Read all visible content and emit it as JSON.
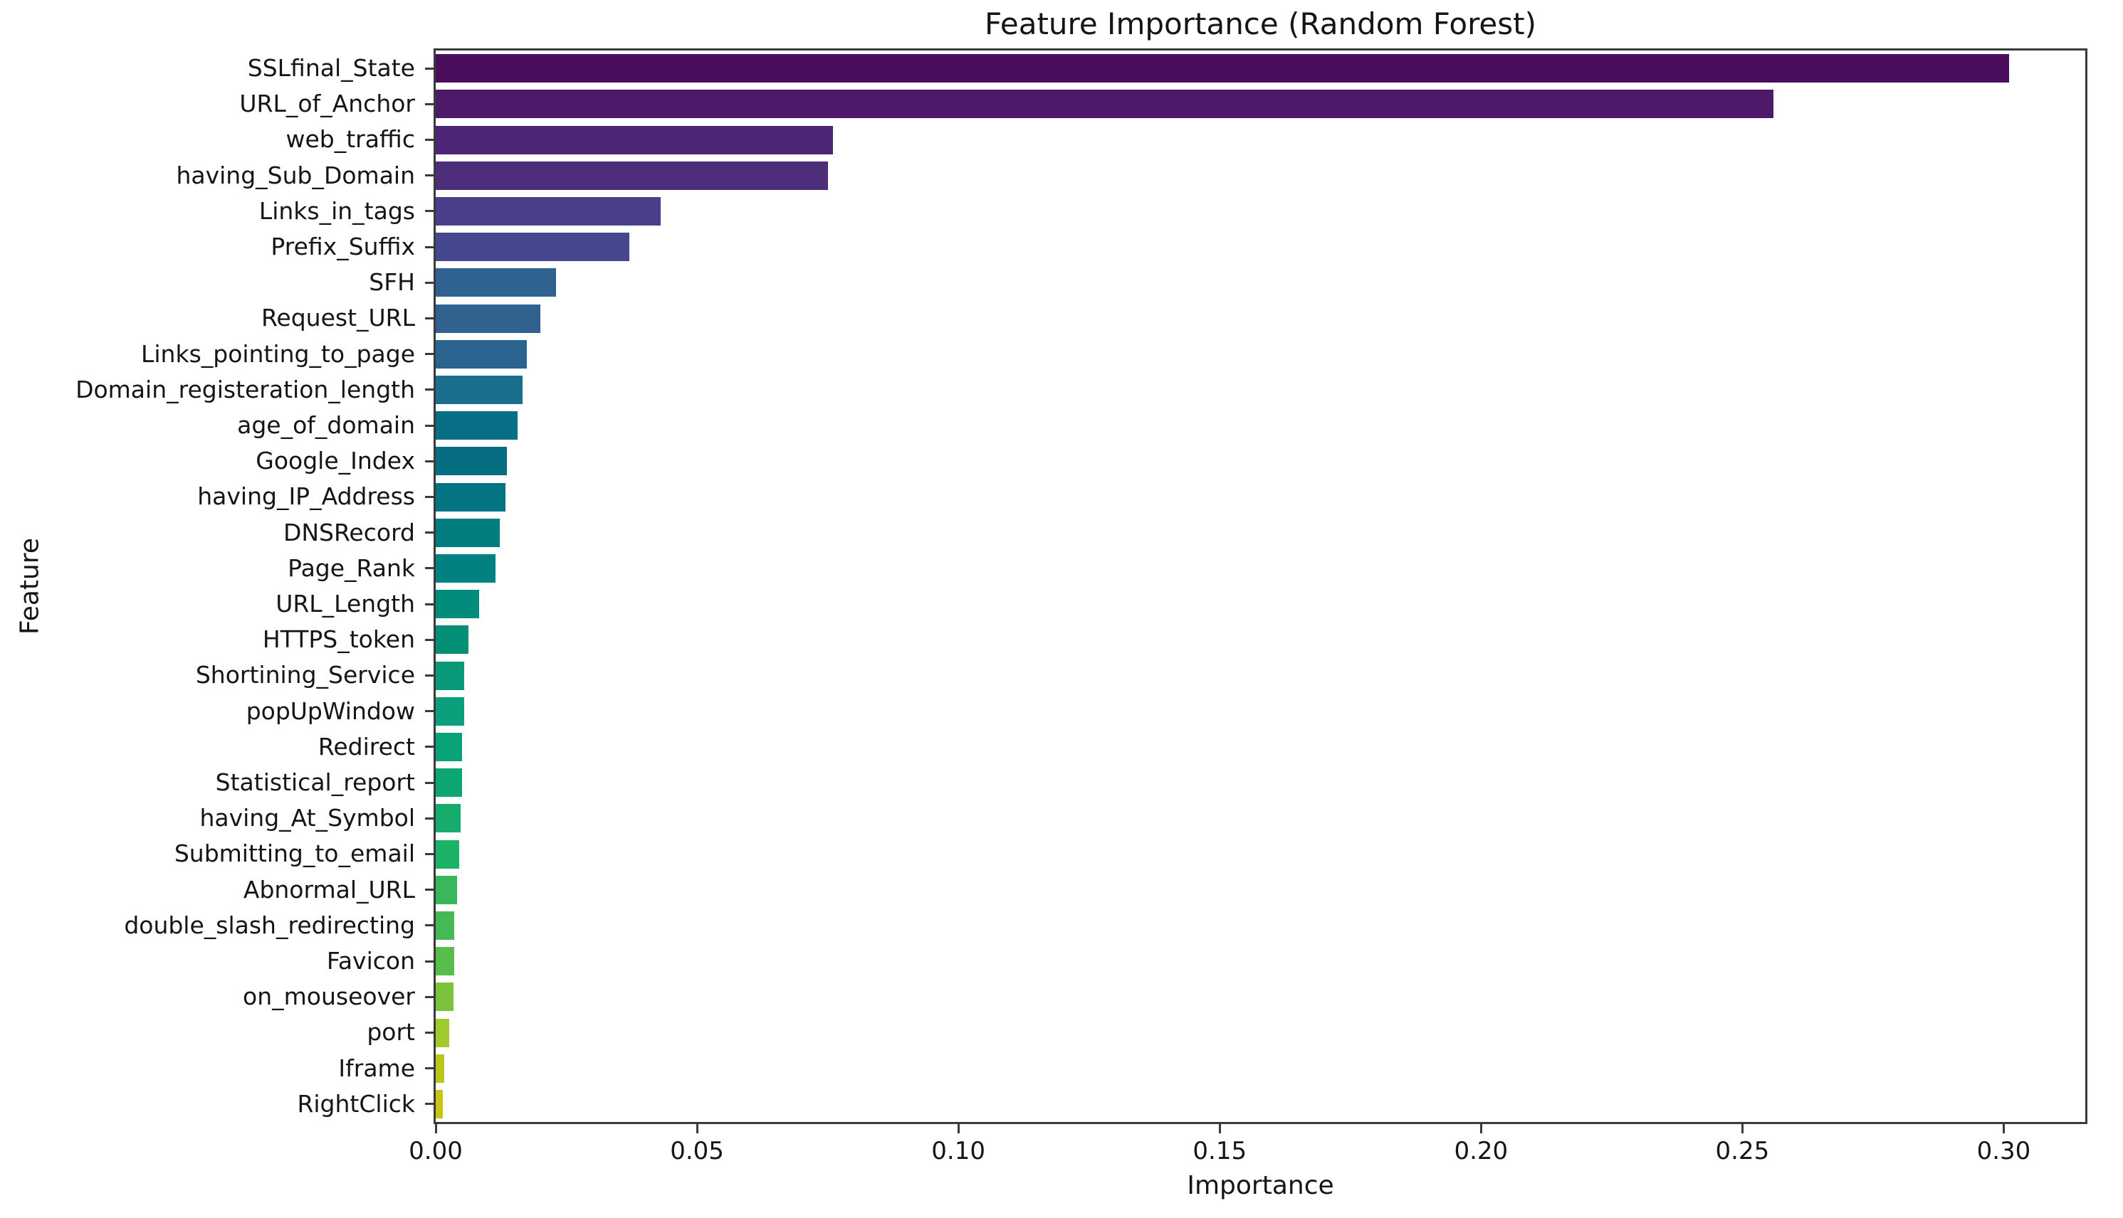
{
  "chart_data": {
    "type": "bar",
    "orientation": "horizontal",
    "title": "Feature Importance (Random Forest)",
    "xlabel": "Importance",
    "ylabel": "Feature",
    "grid": false,
    "legend": "none",
    "xlim": [
      0,
      0.3156
    ],
    "xticks": [
      0.0,
      0.05,
      0.1,
      0.15,
      0.2,
      0.25,
      0.3
    ],
    "xtick_labels": [
      "0.00",
      "0.05",
      "0.10",
      "0.15",
      "0.20",
      "0.25",
      "0.30"
    ],
    "categories": [
      "SSLfinal_State",
      "URL_of_Anchor",
      "web_traffic",
      "having_Sub_Domain",
      "Links_in_tags",
      "Prefix_Suffix",
      "SFH",
      "Request_URL",
      "Links_pointing_to_page",
      "Domain_registeration_length",
      "age_of_domain",
      "Google_Index",
      "having_IP_Address",
      "DNSRecord",
      "Page_Rank",
      "URL_Length",
      "HTTPS_token",
      "Shortining_Service",
      "popUpWindow",
      "Redirect",
      "Statistical_report",
      "having_At_Symbol",
      "Submitting_to_email",
      "Abnormal_URL",
      "double_slash_redirecting",
      "Favicon",
      "on_mouseover",
      "port",
      "Iframe",
      "RightClick"
    ],
    "values": [
      0.301,
      0.256,
      0.076,
      0.075,
      0.043,
      0.037,
      0.023,
      0.02,
      0.0174,
      0.0166,
      0.0156,
      0.0136,
      0.0134,
      0.0122,
      0.0115,
      0.0083,
      0.0063,
      0.0055,
      0.0054,
      0.0051,
      0.005,
      0.0047,
      0.0045,
      0.0041,
      0.0036,
      0.0035,
      0.0034,
      0.0026,
      0.0017,
      0.0014
    ],
    "bar_colors": [
      "#4a0e5c",
      "#4e1968",
      "#4d2577",
      "#4c2e7b",
      "#4a3f8a",
      "#45488e",
      "#2f6191",
      "#31618e",
      "#2b648e",
      "#1a6e8e",
      "#077086",
      "#056e83",
      "#027482",
      "#017d80",
      "#038081",
      "#028c7c",
      "#049077",
      "#0a9a79",
      "#0ba07b",
      "#0aa378",
      "#0ca674",
      "#15ac6e",
      "#1cb267",
      "#3ab75c",
      "#45b953",
      "#57bd4b",
      "#7cc33c",
      "#a2c92d",
      "#b9c71b",
      "#c8c414"
    ],
    "colors": {
      "background": "#ffffff",
      "spine": "#3a3a3a",
      "text": "#151515"
    }
  }
}
